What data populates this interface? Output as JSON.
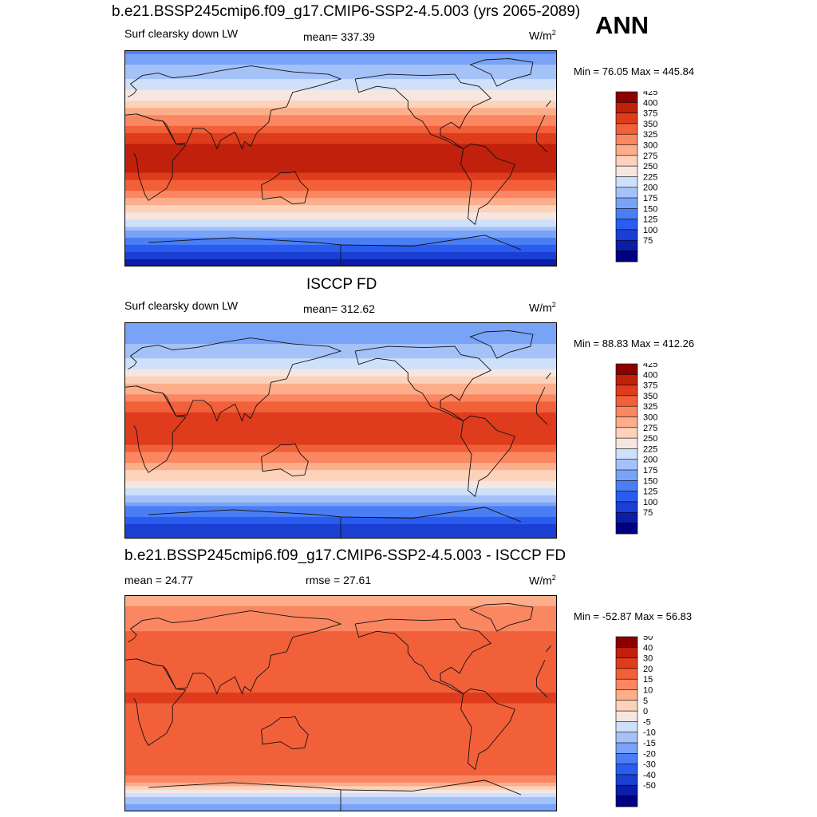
{
  "main_title": "b.e21.BSSP245cmip6.f09_g17.CMIP6-SSP2-4.5.003 (yrs 2065-2089)",
  "season": "ANN",
  "panels": [
    {
      "title": "",
      "left_label": "Surf clearsky down LW",
      "center_label": "mean= 337.39",
      "units": "W/m",
      "units_sup": "2",
      "minmax": "Min =  76.05 Max = 445.84"
    },
    {
      "title": "ISCCP FD",
      "left_label": "Surf clearsky down LW",
      "center_label": "mean= 312.62",
      "units": "W/m",
      "units_sup": "2",
      "minmax": "Min =  88.83 Max = 412.26"
    },
    {
      "title": "b.e21.BSSP245cmip6.f09_g17.CMIP6-SSP2-4.5.003 - ISCCP FD",
      "left_label": "mean =  24.77",
      "center_label": "rmse =  27.61",
      "units": "W/m",
      "units_sup": "2",
      "minmax": "Min = -52.87 Max =  56.83"
    }
  ],
  "chart_data": [
    {
      "type": "heatmap",
      "title": "Surf clearsky down LW",
      "units": "W/m2",
      "mean": 337.39,
      "min": 76.05,
      "max": 445.84,
      "colorbar_levels": [
        75,
        100,
        125,
        150,
        175,
        200,
        225,
        250,
        275,
        300,
        325,
        350,
        375,
        400,
        425
      ],
      "colorbar_colors": [
        "#000080",
        "#0a1ea8",
        "#1a3fd2",
        "#2b5cf0",
        "#4a7ef5",
        "#79a3f7",
        "#a5c2f8",
        "#cfe0fa",
        "#f5e6e0",
        "#fcd2bb",
        "#fcae8a",
        "#fa8762",
        "#f2603a",
        "#de3c1c",
        "#c0200c",
        "#8c0000"
      ],
      "latitude_profile": [
        {
          "lat": 90,
          "value": 170
        },
        {
          "lat": 70,
          "value": 215
        },
        {
          "lat": 50,
          "value": 265
        },
        {
          "lat": 30,
          "value": 345
        },
        {
          "lat": 10,
          "value": 410
        },
        {
          "lat": 0,
          "value": 420
        },
        {
          "lat": -10,
          "value": 405
        },
        {
          "lat": -30,
          "value": 335
        },
        {
          "lat": -50,
          "value": 255
        },
        {
          "lat": -65,
          "value": 180
        },
        {
          "lat": -80,
          "value": 110
        },
        {
          "lat": -90,
          "value": 90
        }
      ]
    },
    {
      "type": "heatmap",
      "title": "Surf clearsky down LW",
      "units": "W/m2",
      "mean": 312.62,
      "min": 88.83,
      "max": 412.26,
      "colorbar_levels": [
        75,
        100,
        125,
        150,
        175,
        200,
        225,
        250,
        275,
        300,
        325,
        350,
        375,
        400,
        425
      ],
      "latitude_profile": [
        {
          "lat": 90,
          "value": 175
        },
        {
          "lat": 70,
          "value": 205
        },
        {
          "lat": 50,
          "value": 250
        },
        {
          "lat": 30,
          "value": 330
        },
        {
          "lat": 10,
          "value": 385
        },
        {
          "lat": 0,
          "value": 390
        },
        {
          "lat": -10,
          "value": 380
        },
        {
          "lat": -30,
          "value": 315
        },
        {
          "lat": -50,
          "value": 240
        },
        {
          "lat": -65,
          "value": 170
        },
        {
          "lat": -80,
          "value": 120
        },
        {
          "lat": -90,
          "value": 105
        }
      ]
    },
    {
      "type": "heatmap",
      "title": "b.e21.BSSP245cmip6.f09_g17.CMIP6-SSP2-4.5.003 - ISCCP FD",
      "units": "W/m2",
      "mean": 24.77,
      "rmse": 27.61,
      "min": -52.87,
      "max": 56.83,
      "colorbar_levels": [
        -50,
        -40,
        -30,
        -20,
        -15,
        -10,
        -5,
        0,
        5,
        10,
        15,
        20,
        30,
        40,
        50
      ],
      "colorbar_colors": [
        "#000080",
        "#0a1ea8",
        "#1a3fd2",
        "#2b5cf0",
        "#4a7ef5",
        "#79a3f7",
        "#a5c2f8",
        "#cfe0fa",
        "#f5e6e0",
        "#fcd2bb",
        "#fcae8a",
        "#fa8762",
        "#f2603a",
        "#de3c1c",
        "#c0200c",
        "#8c0000"
      ],
      "latitude_profile": [
        {
          "lat": 90,
          "value": 12
        },
        {
          "lat": 70,
          "value": 18
        },
        {
          "lat": 50,
          "value": 22
        },
        {
          "lat": 30,
          "value": 28
        },
        {
          "lat": 10,
          "value": 30
        },
        {
          "lat": 0,
          "value": 30
        },
        {
          "lat": -10,
          "value": 28
        },
        {
          "lat": -30,
          "value": 26
        },
        {
          "lat": -50,
          "value": 25
        },
        {
          "lat": -65,
          "value": 18
        },
        {
          "lat": -80,
          "value": -8
        },
        {
          "lat": -90,
          "value": -12
        }
      ]
    }
  ]
}
